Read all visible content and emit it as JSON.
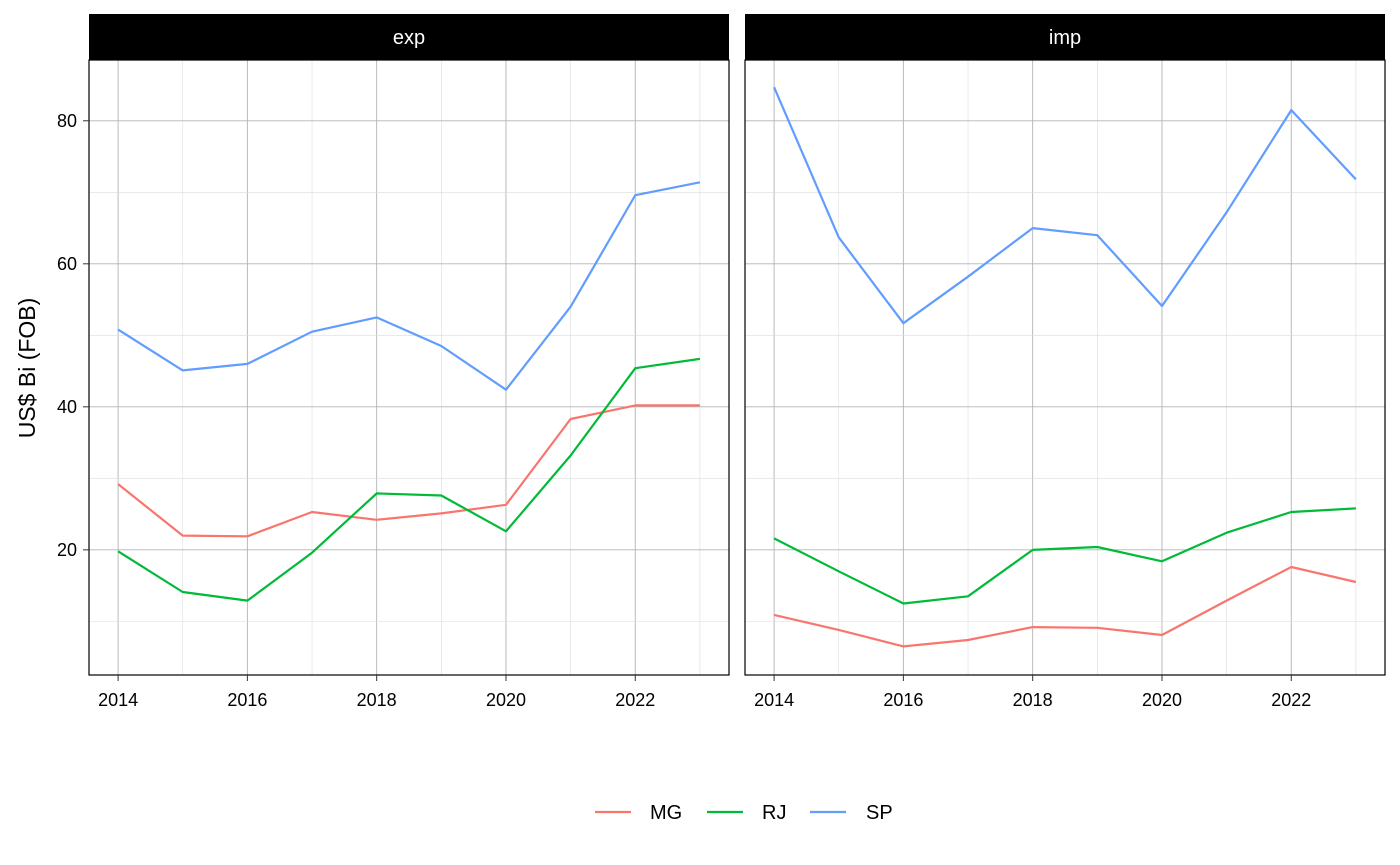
{
  "chart_data": {
    "type": "line",
    "ylabel": "US$ Bi (FOB)",
    "xlabel": "",
    "x": [
      2014,
      2015,
      2016,
      2017,
      2018,
      2019,
      2020,
      2021,
      2022,
      2023
    ],
    "x_ticks": [
      "2014",
      "2016",
      "2018",
      "2020",
      "2022"
    ],
    "y_ticks": [
      "20",
      "40",
      "60",
      "80"
    ],
    "ylim": [
      2.5,
      88.5
    ],
    "xlim": [
      2013.55,
      2023.45
    ],
    "grid": true,
    "legend_position": "bottom",
    "series_colors": {
      "MG": "#F8766D",
      "RJ": "#00BA38",
      "SP": "#619CFF"
    },
    "legend": [
      "MG",
      "RJ",
      "SP"
    ],
    "panels": [
      {
        "strip": "exp",
        "series": [
          {
            "name": "MG",
            "values": [
              29.2,
              22.0,
              21.9,
              25.3,
              24.2,
              25.1,
              26.3,
              38.3,
              40.2,
              40.2
            ]
          },
          {
            "name": "RJ",
            "values": [
              19.8,
              14.1,
              12.9,
              19.6,
              27.9,
              27.6,
              22.6,
              33.2,
              45.4,
              46.7
            ]
          },
          {
            "name": "SP",
            "values": [
              50.8,
              45.1,
              46.0,
              50.5,
              52.5,
              48.5,
              42.4,
              54.0,
              69.6,
              71.4
            ]
          }
        ]
      },
      {
        "strip": "imp",
        "series": [
          {
            "name": "MG",
            "values": [
              10.9,
              8.8,
              6.5,
              7.4,
              9.2,
              9.1,
              8.1,
              12.9,
              17.6,
              15.5
            ]
          },
          {
            "name": "RJ",
            "values": [
              21.6,
              17.0,
              12.5,
              13.5,
              20.0,
              20.4,
              18.4,
              22.4,
              25.3,
              25.8
            ]
          },
          {
            "name": "SP",
            "values": [
              84.7,
              63.7,
              51.7,
              58.2,
              65.0,
              64.0,
              54.1,
              67.2,
              81.5,
              71.8
            ]
          }
        ]
      }
    ]
  }
}
